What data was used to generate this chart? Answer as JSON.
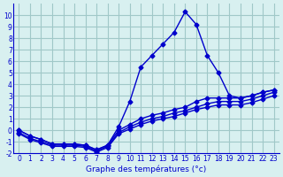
{
  "hours": [
    0,
    1,
    2,
    3,
    4,
    5,
    6,
    7,
    8,
    9,
    10,
    11,
    12,
    13,
    14,
    15,
    16,
    17,
    18,
    19,
    20,
    21,
    22,
    23
  ],
  "temp_main": [
    0,
    -0.5,
    -0.8,
    -1.2,
    -1.2,
    -1.2,
    -1.3,
    -1.7,
    -1.3,
    0.3,
    2.5,
    5.5,
    6.5,
    7.5,
    8.5,
    10.3,
    9.2,
    6.5,
    5.0,
    3.0,
    2.8,
    3.0,
    3.3,
    3.5
  ],
  "temp_line2": [
    0,
    -0.5,
    -0.8,
    -1.2,
    -1.2,
    -1.2,
    -1.3,
    -1.7,
    -1.3,
    0.0,
    0.5,
    1.0,
    1.3,
    1.5,
    1.8,
    2.0,
    2.5,
    2.8,
    2.8,
    2.8,
    2.8,
    3.0,
    3.3,
    3.5
  ],
  "temp_line3": [
    -0.2,
    -0.7,
    -1.0,
    -1.3,
    -1.3,
    -1.3,
    -1.4,
    -1.8,
    -1.4,
    -0.2,
    0.3,
    0.7,
    1.0,
    1.2,
    1.5,
    1.7,
    2.0,
    2.3,
    2.5,
    2.5,
    2.5,
    2.7,
    3.0,
    3.3
  ],
  "temp_line4": [
    -0.3,
    -0.8,
    -1.1,
    -1.4,
    -1.4,
    -1.4,
    -1.5,
    -1.9,
    -1.5,
    -0.3,
    0.1,
    0.5,
    0.8,
    1.0,
    1.2,
    1.5,
    1.8,
    2.0,
    2.2,
    2.2,
    2.2,
    2.4,
    2.7,
    3.0
  ],
  "ylim": [
    -2,
    11
  ],
  "yticks": [
    -2,
    -1,
    0,
    1,
    2,
    3,
    4,
    5,
    6,
    7,
    8,
    9,
    10
  ],
  "xticks": [
    0,
    1,
    2,
    3,
    4,
    5,
    6,
    7,
    8,
    9,
    10,
    11,
    12,
    13,
    14,
    15,
    16,
    17,
    18,
    19,
    20,
    21,
    22,
    23
  ],
  "xlabel": "Graphe des températures (°c)",
  "line_color": "#0000cc",
  "bg_color": "#d8f0f0",
  "grid_color": "#a0c8c8"
}
